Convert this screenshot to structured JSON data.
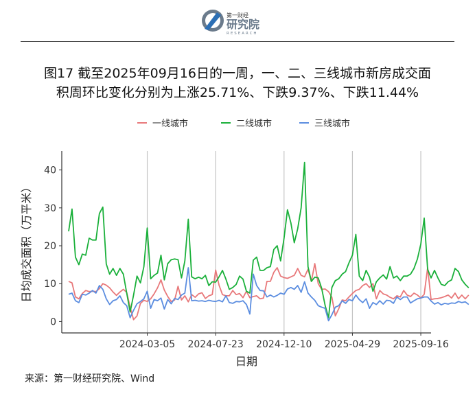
{
  "logo": {
    "line1": "第一财经",
    "line2": "研究院",
    "line3": "RESEARCH"
  },
  "figure": {
    "title_line1": "图17  截至2025年09月16日的一周，一、二、三线城市新房成交面",
    "title_line2": "积周环比变化分别为上涨25.71%、下跌9.37%、下跌11.44%",
    "source": "来源：第一财经研究院、Wind"
  },
  "chart_data": {
    "type": "line",
    "title": "",
    "xlabel": "日期",
    "ylabel": "日均成交面积（万平米）",
    "ylim": [
      -3,
      45
    ],
    "yticks": [
      0,
      10,
      20,
      30,
      40
    ],
    "x_start": "2023-09-26",
    "x_step_days": 7,
    "xlim": [
      "2023-09-12",
      "2025-10-07"
    ],
    "xticks": [
      "2024-03-05",
      "2024-07-23",
      "2024-12-10",
      "2025-04-29",
      "2025-09-16"
    ],
    "grid": "vertical",
    "legend": "top",
    "series": [
      {
        "name": "一线城市",
        "color": "#e8787a",
        "values": [
          10.6,
          10.2,
          6.5,
          6.0,
          7.4,
          8.2,
          7.9,
          8.0,
          7.9,
          8.7,
          10.0,
          9.6,
          8.9,
          7.8,
          6.9,
          7.8,
          8.5,
          7.7,
          3.8,
          0.5,
          1.5,
          4.8,
          5.6,
          5.3,
          6.0,
          7.3,
          8.9,
          11.0,
          8.3,
          6.6,
          5.3,
          5.7,
          9.3,
          5.7,
          6.8,
          5.2,
          7.1,
          6.4,
          7.3,
          7.6,
          6.1,
          6.8,
          7.1,
          13.6,
          9.6,
          7.1,
          6.8,
          6.8,
          8.2,
          7.1,
          7.4,
          6.3,
          8.0,
          6.3,
          6.6,
          6.8,
          6.0,
          6.2,
          10.6,
          10.6,
          13.0,
          14.2,
          12.0,
          11.6,
          11.4,
          11.8,
          12.2,
          14.0,
          12.2,
          11.8,
          13.8,
          10.6,
          15.3,
          10.0,
          8.5,
          8.6,
          7.9,
          6.4,
          1.5,
          3.4,
          5.7,
          5.5,
          6.5,
          7.4,
          8.2,
          8.5,
          9.5,
          10.0,
          9.0,
          10.0,
          6.0,
          8.2,
          7.3,
          7.0,
          6.4,
          6.0,
          6.8,
          6.5,
          8.2,
          7.0,
          6.6,
          7.5,
          7.0,
          6.2,
          7.2,
          14.2,
          5.8,
          6.0,
          6.1,
          6.3,
          6.6,
          7.0,
          6.2,
          7.5,
          6.0,
          7.0,
          6.0,
          7.0
        ]
      },
      {
        "name": "二线城市",
        "color": "#1ab03a",
        "values": [
          23.8,
          29.7,
          17.0,
          15.0,
          17.8,
          17.5,
          22.0,
          21.5,
          21.5,
          28.5,
          30.2,
          15.2,
          12.5,
          14.0,
          12.2,
          14.0,
          12.5,
          7.5,
          2.5,
          7.0,
          12.0,
          10.2,
          14.5,
          24.7,
          11.3,
          12.2,
          12.8,
          17.5,
          11.0,
          15.3,
          16.3,
          16.5,
          16.3,
          11.5,
          16.0,
          27.0,
          11.8,
          11.3,
          11.7,
          11.3,
          12.2,
          9.5,
          10.5,
          10.4,
          11.8,
          13.5,
          11.2,
          8.5,
          9.0,
          9.8,
          12.0,
          11.2,
          8.0,
          7.5,
          16.2,
          17.0,
          13.5,
          13.5,
          14.2,
          14.5,
          19.0,
          20.0,
          16.0,
          22.0,
          29.5,
          26.0,
          20.8,
          24.5,
          30.0,
          42.0,
          14.5,
          10.6,
          11.7,
          11.5,
          8.8,
          4.3,
          1.0,
          9.0,
          10.8,
          11.3,
          12.5,
          13.2,
          15.5,
          17.5,
          23.0,
          12.0,
          10.8,
          13.5,
          11.7,
          8.0,
          10.5,
          11.5,
          12.3,
          11.2,
          14.5,
          11.5,
          12.0,
          10.8,
          12.0,
          12.0,
          12.5,
          14.0,
          16.5,
          20.5,
          27.3,
          13.8,
          11.5,
          13.5,
          11.5,
          9.8,
          9.5,
          10.5,
          11.0,
          14.0,
          13.2,
          11.0,
          9.8,
          8.9
        ]
      },
      {
        "name": "三线城市",
        "color": "#5b8de0",
        "values": [
          7.2,
          7.5,
          5.5,
          5.0,
          7.2,
          7.0,
          7.5,
          8.2,
          7.5,
          9.5,
          8.5,
          6.0,
          4.5,
          5.5,
          5.8,
          6.8,
          5.0,
          4.2,
          1.0,
          3.0,
          4.7,
          5.3,
          6.0,
          8.0,
          3.5,
          5.8,
          5.5,
          6.2,
          3.3,
          5.8,
          4.7,
          6.1,
          5.8,
          7.0,
          7.5,
          14.2,
          5.5,
          5.6,
          5.4,
          5.5,
          5.3,
          5.6,
          5.4,
          5.3,
          5.6,
          5.2,
          6.8,
          5.0,
          4.8,
          5.3,
          5.2,
          5.5,
          4.5,
          2.0,
          12.5,
          9.5,
          8.2,
          8.1,
          6.5,
          7.0,
          6.5,
          6.9,
          7.5,
          7.2,
          8.6,
          9.0,
          8.5,
          9.5,
          7.7,
          10.5,
          7.5,
          6.5,
          5.6,
          4.2,
          3.8,
          3.5,
          0.2,
          1.8,
          3.8,
          4.2,
          5.5,
          4.8,
          5.8,
          5.5,
          7.0,
          5.8,
          5.0,
          6.0,
          3.5,
          5.0,
          4.5,
          5.5,
          4.6,
          5.6,
          5.5,
          4.8,
          6.5,
          5.8,
          6.5,
          6.5,
          4.9,
          5.5,
          6.0,
          6.2,
          6.5,
          6.5,
          5.4,
          4.6,
          5.0,
          4.4,
          4.8,
          4.6,
          4.9,
          4.8,
          5.3,
          5.0,
          5.2,
          4.5
        ]
      }
    ]
  }
}
